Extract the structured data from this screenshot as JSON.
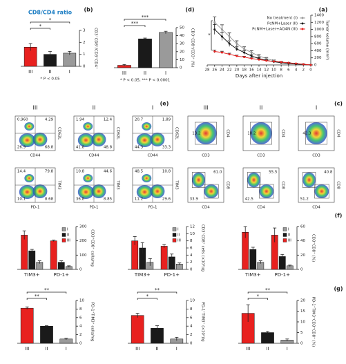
{
  "panel_labels": [
    "(a)",
    "(b)",
    "(c)",
    "(d)",
    "(e)",
    "(f)",
    "(g)"
  ],
  "chart_data": [
    {
      "type": "bar",
      "title": "CD8/CD4 ratio",
      "ylabel": "CD3⁺CD8⁺/CD3⁺CD4⁺",
      "categories": [
        "III",
        "II",
        "I"
      ],
      "values": [
        1.6,
        1.0,
        1.1
      ],
      "errors": [
        0.3,
        0.25,
        0.15
      ],
      "colors": [
        "#e8211f",
        "#1a1a1a",
        "#9a9a9a"
      ],
      "ylim": [
        0,
        3
      ],
      "yticks": [
        0,
        1,
        2,
        3
      ],
      "sig": [
        "*",
        "*"
      ],
      "note": "* P < 0.05"
    },
    {
      "type": "bar",
      "ylabel": "CD3⁺CD8⁺/CD3⁺ (%)",
      "categories": [
        "III",
        "II",
        "I"
      ],
      "values": [
        3,
        36,
        44
      ],
      "errors": [
        1,
        1,
        1.5
      ],
      "colors": [
        "#e8211f",
        "#1a1a1a",
        "#9a9a9a"
      ],
      "ylim": [
        0,
        50
      ],
      "yticks": [
        0,
        10,
        20,
        30,
        40,
        50
      ],
      "sig": [
        "***",
        "***"
      ],
      "note": "* P < 0.05, *** P < 0.0001"
    },
    {
      "type": "line",
      "xlabel": "Days after injection",
      "ylabel": "Tumor volume (mm³)",
      "x": [
        0,
        2,
        4,
        6,
        8,
        10,
        12,
        14,
        16,
        18,
        20,
        22,
        24,
        26
      ],
      "series": [
        {
          "name": "No treatment (I)",
          "color": "#9a9a9a",
          "values": [
            0,
            20,
            30,
            50,
            80,
            120,
            180,
            250,
            350,
            450,
            600,
            800,
            1000,
            1200
          ],
          "errors": [
            0,
            5,
            8,
            10,
            15,
            20,
            30,
            40,
            50,
            60,
            80,
            100,
            130,
            150
          ]
        },
        {
          "name": "PcNM+Laser (II)",
          "color": "#1a1a1a",
          "values": [
            0,
            15,
            25,
            40,
            60,
            90,
            130,
            180,
            250,
            350,
            450,
            600,
            800,
            1000
          ],
          "errors": [
            0,
            5,
            6,
            8,
            12,
            15,
            20,
            30,
            40,
            50,
            60,
            80,
            110,
            140
          ]
        },
        {
          "name": "PcNM+Laser+AQ4N (III)",
          "color": "#e8211f",
          "values": [
            0,
            20,
            40,
            60,
            80,
            100,
            120,
            150,
            180,
            220,
            250,
            300,
            350,
            380
          ],
          "errors": [
            0,
            5,
            6,
            8,
            10,
            12,
            15,
            18,
            20,
            25,
            25,
            30,
            35,
            40
          ]
        }
      ],
      "xlim": [
        28,
        0
      ],
      "xticks": [
        28,
        26,
        24,
        22,
        20,
        18,
        16,
        14,
        12,
        10,
        8,
        6,
        4,
        2,
        0
      ],
      "ylim": [
        0,
        1400
      ],
      "yticks": [
        0,
        200,
        400,
        600,
        800,
        1000,
        1200,
        1400
      ],
      "sig": [
        "*"
      ]
    },
    {
      "type": "flow",
      "title": "I",
      "xlabel": "CD3",
      "ylabel": "CD4",
      "numbers": [
        "42.3"
      ]
    },
    {
      "type": "flow",
      "title": "II",
      "xlabel": "CD3",
      "ylabel": "CD4",
      "numbers": [
        "18.2"
      ]
    },
    {
      "type": "flow",
      "title": "III",
      "xlabel": "CD3",
      "ylabel": "CD4",
      "numbers": [
        "13.2"
      ]
    },
    {
      "type": "flow",
      "xlabel": "CD4",
      "ylabel": "CD8",
      "numbers": [
        "40.8",
        "51.2"
      ]
    },
    {
      "type": "flow",
      "xlabel": "CD4",
      "ylabel": "CD8",
      "numbers": [
        "55.5",
        "42.5"
      ]
    },
    {
      "type": "flow",
      "xlabel": "CD4",
      "ylabel": "CD8",
      "numbers": [
        "61.0",
        "33.9"
      ]
    },
    {
      "type": "flow",
      "title": "I",
      "xlabel": "CD44",
      "ylabel": "CD62L",
      "numbers": [
        "20.7",
        "1.89",
        "44.3",
        "33.3"
      ]
    },
    {
      "type": "flow",
      "title": "II",
      "xlabel": "CD44",
      "ylabel": "CD62L",
      "numbers": [
        "1.94",
        "12.4",
        "41.8",
        "48.8"
      ]
    },
    {
      "type": "flow",
      "title": "III",
      "xlabel": "CD44",
      "ylabel": "CD62L",
      "numbers": [
        "0.960",
        "4.29",
        "26.9",
        "68.8"
      ]
    },
    {
      "type": "flow",
      "xlabel": "PD-1",
      "ylabel": "TIM3",
      "numbers": [
        "48.5",
        "10.8",
        "11.2",
        "29.6"
      ]
    },
    {
      "type": "flow",
      "xlabel": "PD-1",
      "ylabel": "TIM3",
      "numbers": [
        "10.8",
        "44.6",
        "36.8",
        "8.85"
      ]
    },
    {
      "type": "flow",
      "xlabel": "PD-1",
      "ylabel": "TIM3",
      "numbers": [
        "14.4",
        "79.8",
        "10.1",
        "8.68"
      ]
    },
    {
      "type": "grouped_bar",
      "ylabel": "CD3⁺CD8⁺ (%)",
      "categories": [
        "TIM3+",
        "PD-1+"
      ],
      "series": [
        {
          "name": "III",
          "color": "#e8211f",
          "values": [
            52,
            48
          ],
          "errors": [
            8,
            10
          ]
        },
        {
          "name": "II",
          "color": "#1a1a1a",
          "values": [
            28,
            18
          ],
          "errors": [
            3,
            3
          ]
        },
        {
          "name": "I",
          "color": "#9a9a9a",
          "values": [
            10,
            5
          ],
          "errors": [
            2,
            1
          ]
        }
      ],
      "ylim": [
        0,
        60
      ],
      "yticks": [
        0,
        20,
        40,
        60
      ]
    },
    {
      "type": "grouped_bar",
      "ylabel": "CD3⁺CD8⁺ cells (×10³)/g",
      "categories": [
        "TIM3+",
        "PD-1+"
      ],
      "series": [
        {
          "name": "III",
          "color": "#e8211f",
          "values": [
            8,
            6.5
          ],
          "errors": [
            1.2,
            0.5
          ]
        },
        {
          "name": "II",
          "color": "#1a1a1a",
          "values": [
            6,
            3.5
          ],
          "errors": [
            1.5,
            0.8
          ]
        },
        {
          "name": "I",
          "color": "#9a9a9a",
          "values": [
            2,
            1.5
          ],
          "errors": [
            1,
            0.3
          ]
        }
      ],
      "ylim": [
        0,
        12
      ],
      "yticks": [
        0,
        2,
        4,
        6,
        8,
        10,
        12
      ]
    },
    {
      "type": "grouped_bar",
      "ylabel": "CD3⁺CD8⁺ cells/mg",
      "categories": [
        "TIM3+",
        "PD-1+"
      ],
      "series": [
        {
          "name": "III",
          "color": "#e8211f",
          "values": [
            240,
            200
          ],
          "errors": [
            30,
            5
          ]
        },
        {
          "name": "II",
          "color": "#1a1a1a",
          "values": [
            130,
            50
          ],
          "errors": [
            10,
            10
          ]
        },
        {
          "name": "I",
          "color": "#9a9a9a",
          "values": [
            50,
            20
          ],
          "errors": [
            10,
            5
          ]
        }
      ],
      "ylim": [
        0,
        300
      ],
      "yticks": [
        0,
        100,
        200,
        300
      ]
    },
    {
      "type": "bar",
      "ylabel": "PD-1⁺TIM3⁺CD3⁺CD8⁺ (%)",
      "categories": [
        "III",
        "II",
        "I"
      ],
      "values": [
        14,
        5,
        1.5
      ],
      "errors": [
        4,
        0.5,
        0.5
      ],
      "colors": [
        "#e8211f",
        "#1a1a1a",
        "#9a9a9a"
      ],
      "ylim": [
        0,
        20
      ],
      "yticks": [
        0,
        5,
        10,
        15,
        20
      ],
      "sig": [
        "*",
        "**"
      ]
    },
    {
      "type": "bar",
      "ylabel": "PD-1⁺TIM3⁺ (×10³)/g",
      "categories": [
        "III",
        "II",
        "I"
      ],
      "values": [
        6.5,
        3.5,
        1
      ],
      "errors": [
        0.5,
        0.6,
        0.4
      ],
      "colors": [
        "#e8211f",
        "#1a1a1a",
        "#9a9a9a"
      ],
      "ylim": [
        0,
        10
      ],
      "yticks": [
        0,
        2,
        4,
        6,
        8,
        10
      ],
      "sig": [
        "*",
        "**"
      ]
    },
    {
      "type": "bar",
      "ylabel": "PD-1⁺TIM3⁺ cells/mg",
      "categories": [
        "III",
        "II",
        "I"
      ],
      "values": [
        8.2,
        4,
        1
      ],
      "errors": [
        0.3,
        0.1,
        0.2
      ],
      "colors": [
        "#e8211f",
        "#1a1a1a",
        "#9a9a9a"
      ],
      "ylim": [
        0,
        10
      ],
      "yticks": [
        0,
        2,
        4,
        6,
        8,
        10
      ],
      "sig": [
        "**",
        "**"
      ]
    }
  ]
}
